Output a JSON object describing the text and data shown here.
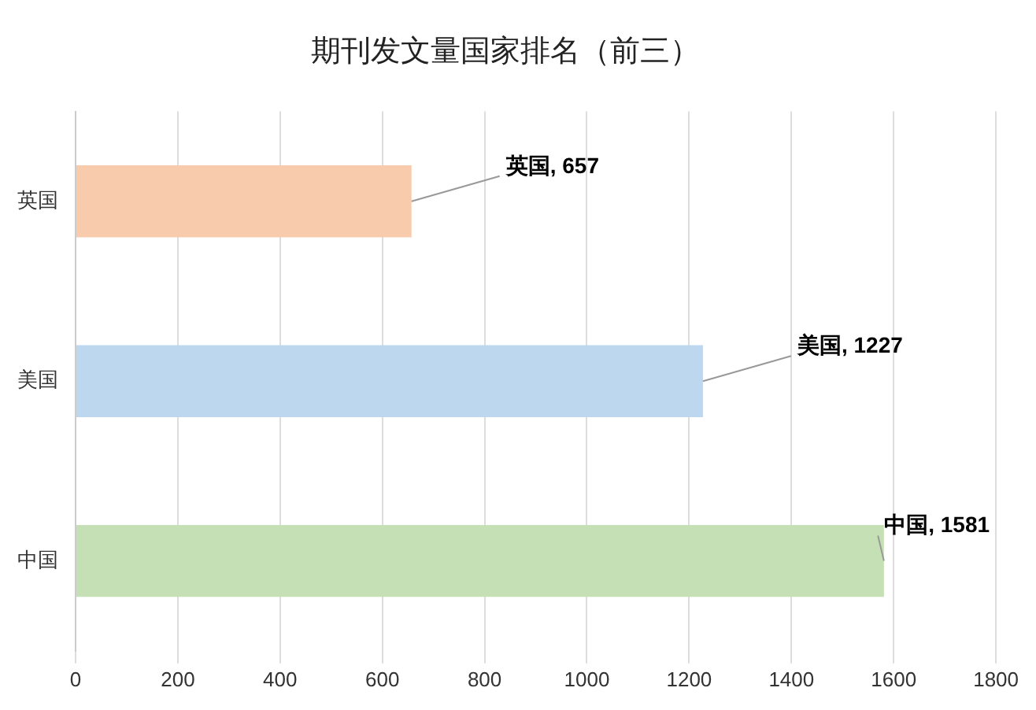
{
  "chart_data": {
    "type": "bar",
    "orientation": "horizontal",
    "title": "期刊发文量国家排名（前三）",
    "categories": [
      "英国",
      "美国",
      "中国"
    ],
    "values": [
      657,
      1227,
      1581
    ],
    "colors": [
      "#f8cbad",
      "#bdd7ee",
      "#c5e0b4"
    ],
    "xlim": [
      0,
      1800
    ],
    "xticks": [
      0,
      200,
      400,
      600,
      800,
      1000,
      1200,
      1400,
      1600,
      1800
    ],
    "value_labels": [
      "英国, 657",
      "美国, 1227",
      "中国, 1581"
    ],
    "grid": "x",
    "legend": false
  }
}
